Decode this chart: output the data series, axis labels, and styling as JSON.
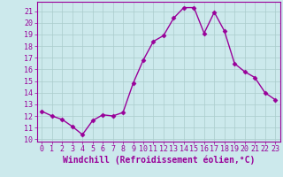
{
  "x": [
    0,
    1,
    2,
    3,
    4,
    5,
    6,
    7,
    8,
    9,
    10,
    11,
    12,
    13,
    14,
    15,
    16,
    17,
    18,
    19,
    20,
    21,
    22,
    23
  ],
  "y": [
    12.4,
    12.0,
    11.7,
    11.1,
    10.4,
    11.6,
    12.1,
    12.0,
    12.3,
    14.8,
    16.8,
    18.4,
    18.9,
    20.4,
    21.3,
    21.3,
    19.1,
    20.9,
    19.3,
    16.5,
    15.8,
    15.3,
    14.0,
    13.4
  ],
  "line_color": "#990099",
  "marker": "D",
  "markersize": 2.5,
  "linewidth": 1.0,
  "bg_color": "#cce9ec",
  "grid_color": "#aacccc",
  "xlabel": "Windchill (Refroidissement éolien,°C)",
  "ylabel": "",
  "title": "",
  "xlim": [
    -0.5,
    23.5
  ],
  "ylim": [
    9.8,
    21.8
  ],
  "yticks": [
    10,
    11,
    12,
    13,
    14,
    15,
    16,
    17,
    18,
    19,
    20,
    21
  ],
  "xticks": [
    0,
    1,
    2,
    3,
    4,
    5,
    6,
    7,
    8,
    9,
    10,
    11,
    12,
    13,
    14,
    15,
    16,
    17,
    18,
    19,
    20,
    21,
    22,
    23
  ],
  "tick_fontsize": 6.0,
  "xlabel_fontsize": 7.0,
  "tick_color": "#990099",
  "label_color": "#990099",
  "spine_color": "#990099"
}
